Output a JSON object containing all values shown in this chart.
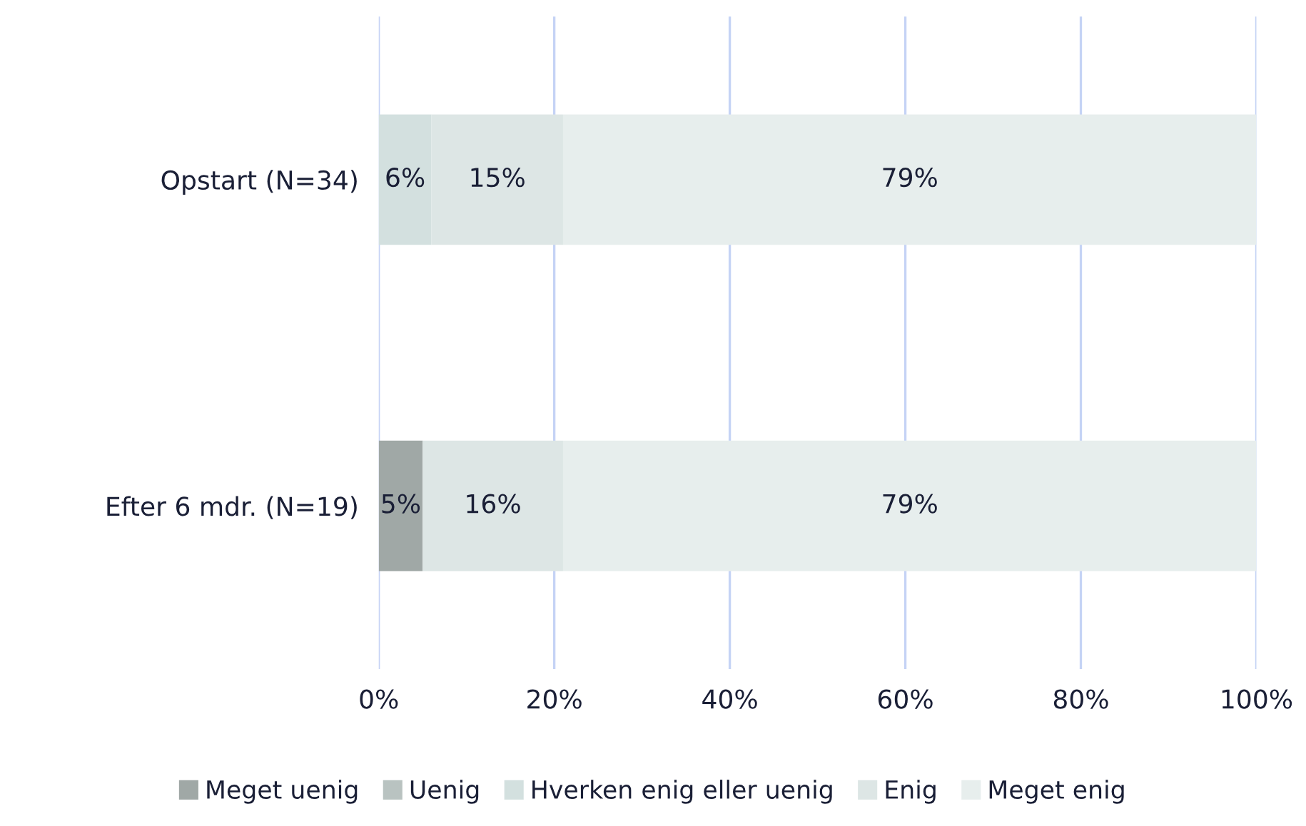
{
  "chart_data": {
    "type": "bar",
    "orientation": "horizontal",
    "stacked": true,
    "categories": [
      "Opstart (N=34)",
      "Efter 6 mdr. (N=19)"
    ],
    "series": [
      {
        "name": "Meget uenig",
        "color": "#a0a8a6",
        "values": [
          0,
          5
        ],
        "value_labels": [
          null,
          "5%"
        ]
      },
      {
        "name": "Uenig",
        "color": "#b9c3c1",
        "values": [
          0,
          0
        ],
        "value_labels": [
          null,
          null
        ]
      },
      {
        "name": "Hverken enig eller uenig",
        "color": "#d3e0df",
        "values": [
          6,
          0
        ],
        "value_labels": [
          "6%",
          null
        ]
      },
      {
        "name": "Enig",
        "color": "#dde6e5",
        "values": [
          15,
          16
        ],
        "value_labels": [
          "15%",
          "16%"
        ]
      },
      {
        "name": "Meget enig",
        "color": "#e7eeed",
        "values": [
          79,
          79
        ],
        "value_labels": [
          "79%",
          "79%"
        ]
      }
    ],
    "xlim": [
      0,
      100
    ],
    "xticks": [
      {
        "value": 0,
        "label": "0%"
      },
      {
        "value": 20,
        "label": "20%"
      },
      {
        "value": 40,
        "label": "40%"
      },
      {
        "value": 60,
        "label": "60%"
      },
      {
        "value": 80,
        "label": "80%"
      },
      {
        "value": 100,
        "label": "100%"
      }
    ],
    "grid": "x",
    "legend": "bottom"
  }
}
